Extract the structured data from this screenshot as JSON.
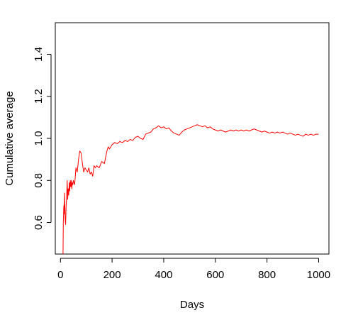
{
  "chart_data": {
    "type": "line",
    "title": "",
    "xlabel": "Days",
    "ylabel": "Cumulative average",
    "xlim": [
      -20,
      1040
    ],
    "ylim": [
      0.45,
      1.55
    ],
    "x_ticks": [
      0,
      200,
      400,
      600,
      800,
      1000
    ],
    "x_tick_labels": [
      "0",
      "200",
      "400",
      "600",
      "800",
      "1000"
    ],
    "y_ticks": [
      0.6,
      0.8,
      1.0,
      1.2,
      1.4
    ],
    "y_tick_labels": [
      "0.6",
      "0.8",
      "1.0",
      "1.2",
      "1.4"
    ],
    "grid": false,
    "legend": "none",
    "series": [
      {
        "color": "#ff0000",
        "x": [
          10,
          11,
          13,
          14,
          16,
          18,
          20,
          22,
          24,
          26,
          28,
          30,
          32,
          34,
          36,
          38,
          40,
          42,
          44,
          46,
          48,
          50,
          55,
          60,
          65,
          70,
          75,
          80,
          85,
          90,
          95,
          100,
          105,
          110,
          115,
          120,
          125,
          130,
          135,
          140,
          150,
          160,
          170,
          180,
          185,
          190,
          200,
          210,
          220,
          230,
          240,
          250,
          260,
          270,
          280,
          290,
          300,
          310,
          320,
          330,
          340,
          350,
          360,
          370,
          380,
          390,
          400,
          410,
          420,
          430,
          440,
          450,
          460,
          470,
          480,
          490,
          500,
          510,
          520,
          530,
          540,
          550,
          560,
          570,
          580,
          590,
          600,
          610,
          620,
          630,
          640,
          650,
          660,
          670,
          680,
          690,
          700,
          710,
          720,
          730,
          740,
          750,
          760,
          770,
          780,
          790,
          800,
          810,
          820,
          830,
          840,
          850,
          860,
          870,
          880,
          890,
          900,
          910,
          920,
          930,
          940,
          950,
          960,
          970,
          980,
          990,
          1000
        ],
        "y": [
          0.45,
          0.6,
          0.68,
          0.64,
          0.74,
          0.62,
          0.59,
          0.68,
          0.72,
          0.8,
          0.71,
          0.76,
          0.73,
          0.79,
          0.75,
          0.8,
          0.77,
          0.8,
          0.76,
          0.79,
          0.78,
          0.8,
          0.78,
          0.86,
          0.84,
          0.9,
          0.94,
          0.93,
          0.88,
          0.84,
          0.86,
          0.85,
          0.84,
          0.86,
          0.83,
          0.84,
          0.82,
          0.87,
          0.86,
          0.87,
          0.86,
          0.89,
          0.88,
          0.94,
          0.96,
          0.95,
          0.97,
          0.98,
          0.975,
          0.985,
          0.98,
          0.99,
          0.985,
          0.995,
          0.99,
          1.005,
          1.01,
          1.0,
          0.995,
          1.02,
          1.025,
          1.03,
          1.045,
          1.05,
          1.06,
          1.05,
          1.055,
          1.045,
          1.05,
          1.035,
          1.025,
          1.02,
          1.015,
          1.03,
          1.04,
          1.045,
          1.05,
          1.055,
          1.06,
          1.065,
          1.06,
          1.055,
          1.06,
          1.05,
          1.055,
          1.045,
          1.04,
          1.035,
          1.04,
          1.035,
          1.03,
          1.035,
          1.04,
          1.035,
          1.04,
          1.035,
          1.04,
          1.035,
          1.04,
          1.035,
          1.04,
          1.045,
          1.04,
          1.035,
          1.03,
          1.035,
          1.03,
          1.025,
          1.03,
          1.025,
          1.03,
          1.025,
          1.03,
          1.025,
          1.02,
          1.025,
          1.02,
          1.015,
          1.02,
          1.015,
          1.01,
          1.02,
          1.015,
          1.02,
          1.015,
          1.02,
          1.02
        ]
      }
    ]
  }
}
